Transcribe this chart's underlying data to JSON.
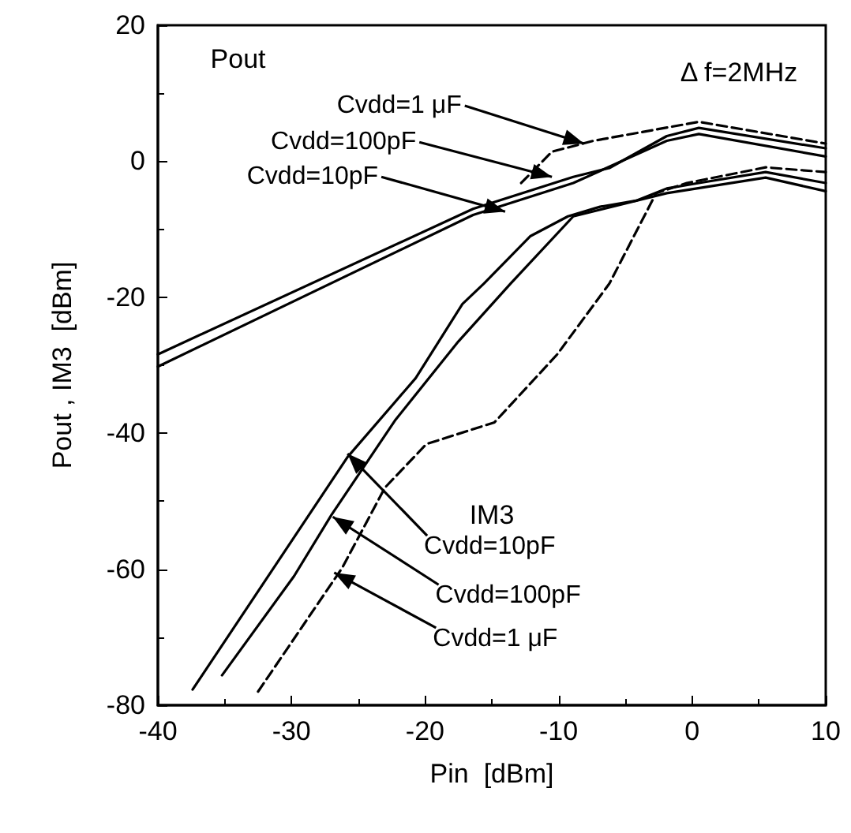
{
  "chart_data": {
    "type": "line",
    "xlabel": "Pin  [dBm]",
    "ylabel": "Pout , IM3  [dBm]",
    "xlim": [
      -40,
      10
    ],
    "xticks": [
      -40,
      -30,
      -20,
      -10,
      0,
      10
    ],
    "ylim": [
      -80,
      20
    ],
    "yticks": [
      -80,
      -60,
      -40,
      -20,
      0,
      20
    ],
    "grid": false,
    "marker": "none",
    "series": [
      {
        "color": "#000000",
        "line_style": "solid",
        "x": [
          -40,
          -16.4,
          -8.9,
          -6.2,
          -1.9,
          0.5,
          10
        ],
        "values": [
          -28.4,
          -7,
          -2.3,
          -1,
          3.7,
          4.9,
          1.9
        ]
      },
      {
        "color": "#000000",
        "line_style": "solid",
        "x": [
          -40,
          -16.4,
          -8.9,
          -1.9,
          0.5,
          10
        ],
        "values": [
          -30.2,
          -7.9,
          -3.2,
          3,
          4,
          0.7
        ]
      },
      {
        "color": "#000000",
        "line_style": "dashed",
        "x": [
          -12.8,
          -10.5,
          -7.4,
          0.5,
          10
        ],
        "values": [
          -3.2,
          1.4,
          3,
          5.8,
          2.6
        ]
      },
      {
        "color": "#000000",
        "line_style": "solid",
        "x": [
          -37.4,
          -25.8,
          -20.7,
          -17.2,
          -15.6,
          -12.1,
          -9.3,
          -6.9,
          -4.2,
          -1.9,
          0.5,
          5.5,
          10
        ],
        "values": [
          -77.7,
          -43.5,
          -31.9,
          -21,
          -18,
          -11,
          -8.1,
          -6.7,
          -5.8,
          -4,
          -3.2,
          -1.6,
          -3.2
        ]
      },
      {
        "color": "#000000",
        "line_style": "solid",
        "x": [
          -35.2,
          -29.8,
          -27,
          -22.2,
          -17.5,
          -13.6,
          -8.9,
          -1.9,
          5.5,
          10
        ],
        "values": [
          -75.6,
          -61,
          -52,
          -38,
          -26.5,
          -18,
          -8.1,
          -4.7,
          -2.4,
          -4.4
        ]
      },
      {
        "color": "#000000",
        "line_style": "dashed",
        "x": [
          -32.5,
          -26.2,
          -23,
          -19.9,
          -14.8,
          -10.1,
          -6.2,
          -2.7,
          -0.4,
          5.5,
          10
        ],
        "values": [
          -78,
          -59.8,
          -48,
          -41.6,
          -38.4,
          -28.4,
          -18,
          -4.7,
          -3.2,
          -0.9,
          -1.6
        ]
      }
    ],
    "annotations": [
      "Pout",
      "Δ f=2MHz",
      "IM3",
      {
        "text": "Cvdd=1 μF",
        "x": -8.1,
        "y": 2.6
      },
      {
        "text": "Cvdd=100pF",
        "x": -10.5,
        "y": -2.3
      },
      {
        "text": "Cvdd=10pF",
        "x": -14,
        "y": -7.4
      },
      {
        "text": "Cvdd=10pF",
        "x": -25.8,
        "y": -43
      },
      {
        "text": "Cvdd=100pF",
        "x": -26.9,
        "y": -52.3
      },
      {
        "text": "Cvdd=1 μF",
        "x": -26.8,
        "y": -60.5
      }
    ]
  }
}
